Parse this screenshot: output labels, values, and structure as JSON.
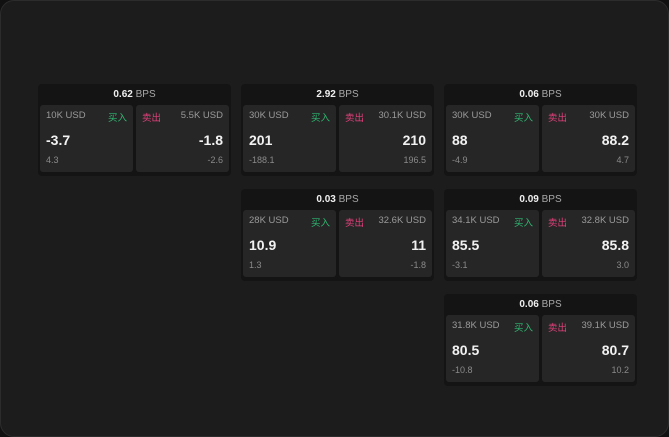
{
  "buy_label": "买入",
  "sell_label": "卖出",
  "unit": "BPS",
  "colors": {
    "buy": "#2eb872",
    "sell": "#e0407a"
  },
  "cards": [
    {
      "spread": "0.62",
      "bid_size": "10K USD",
      "bid": "-3.7",
      "bid_change": "4.3",
      "ask_size": "5.5K USD",
      "ask": "-1.8",
      "ask_change": "-2.6"
    },
    {
      "spread": "2.92",
      "bid_size": "30K USD",
      "bid": "201",
      "bid_change": "-188.1",
      "ask_size": "30.1K USD",
      "ask": "210",
      "ask_change": "196.5"
    },
    {
      "spread": "0.06",
      "bid_size": "30K USD",
      "bid": "88",
      "bid_change": "-4.9",
      "ask_size": "30K USD",
      "ask": "88.2",
      "ask_change": "4.7"
    },
    {
      "spread": "0.03",
      "bid_size": "28K USD",
      "bid": "10.9",
      "bid_change": "1.3",
      "ask_size": "32.6K USD",
      "ask": "11",
      "ask_change": "-1.8"
    },
    {
      "spread": "0.09",
      "bid_size": "34.1K USD",
      "bid": "85.5",
      "bid_change": "-3.1",
      "ask_size": "32.8K USD",
      "ask": "85.8",
      "ask_change": "3.0"
    },
    {
      "spread": "0.06",
      "bid_size": "31.8K USD",
      "bid": "80.5",
      "bid_change": "-10.8",
      "ask_size": "39.1K USD",
      "ask": "80.7",
      "ask_change": "10.2"
    }
  ]
}
